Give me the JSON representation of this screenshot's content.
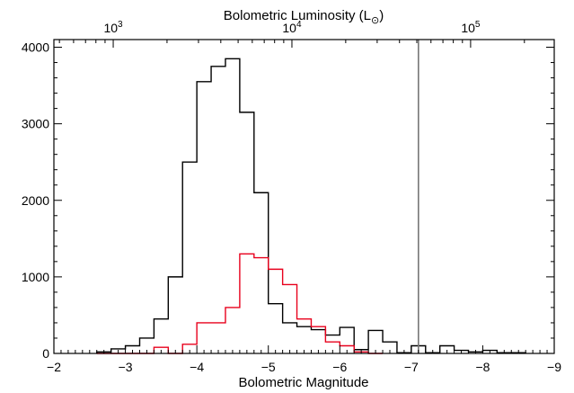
{
  "chart_data": {
    "type": "histogram",
    "title": "",
    "xlabel": "Bolometric Magnitude",
    "x2label_main": "Bolometric Luminosity (L",
    "x2label_sub": "⊙",
    "x2label_close": ")",
    "ylabel": "",
    "xlim": [
      -2,
      -9
    ],
    "ylim": [
      0,
      4100
    ],
    "x_ticks": [
      -2,
      -3,
      -4,
      -5,
      -6,
      -7,
      -8,
      -9
    ],
    "x_tick_labels": [
      "−2",
      "−3",
      "−4",
      "−5",
      "−6",
      "−7",
      "−8",
      "−9"
    ],
    "y_ticks": [
      0,
      1000,
      2000,
      3000,
      4000
    ],
    "y_tick_labels": [
      "0",
      "1000",
      "2000",
      "3000",
      "4000"
    ],
    "top_ticks": [
      {
        "base": "10",
        "exp": "3",
        "mag": -2.83
      },
      {
        "base": "10",
        "exp": "4",
        "mag": -5.33
      },
      {
        "base": "10",
        "exp": "5",
        "mag": -7.83
      }
    ],
    "bin_width": 0.2,
    "series": [
      {
        "color": "#000000",
        "bin_starts": [
          -2.6,
          -2.8,
          -3.0,
          -3.2,
          -3.4,
          -3.6,
          -3.8,
          -4.0,
          -4.2,
          -4.4,
          -4.6,
          -4.8,
          -5.0,
          -5.2,
          -5.4,
          -5.6,
          -5.8,
          -6.0,
          -6.2,
          -6.4,
          -6.6,
          -6.8,
          -7.0,
          -7.2,
          -7.4,
          -7.6,
          -7.8,
          -8.0,
          -8.2,
          -8.4
        ],
        "counts": [
          20,
          60,
          100,
          200,
          450,
          1000,
          2500,
          3550,
          3750,
          3850,
          3150,
          2100,
          650,
          400,
          350,
          310,
          240,
          340,
          50,
          300,
          150,
          10,
          100,
          10,
          100,
          40,
          20,
          40,
          10,
          10
        ]
      },
      {
        "color": "#e8001c",
        "bin_starts": [
          -2.6,
          -2.8,
          -3.0,
          -3.2,
          -3.4,
          -3.6,
          -3.8,
          -4.0,
          -4.2,
          -4.4,
          -4.6,
          -4.8,
          -5.0,
          -5.2,
          -5.4,
          -5.6,
          -5.8,
          -6.0,
          -6.2,
          -6.4
        ],
        "counts": [
          0,
          0,
          0,
          0,
          80,
          0,
          120,
          400,
          400,
          600,
          1300,
          1250,
          1100,
          900,
          450,
          350,
          150,
          100,
          20,
          0
        ]
      }
    ],
    "vertical_line": {
      "x": -7.1,
      "color": "#777777"
    }
  }
}
